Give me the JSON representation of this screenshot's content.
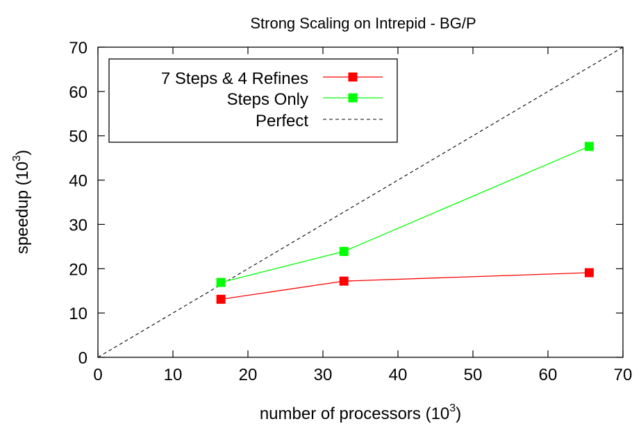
{
  "chart_data": {
    "type": "line",
    "title": "Strong Scaling on Intrepid - BG/P",
    "xlabel": "number of processors (10",
    "xlabel_sup": "3",
    "xlabel_close": ")",
    "ylabel": "speedup (10",
    "ylabel_sup": "3",
    "ylabel_close": ")",
    "xlim": [
      0,
      70
    ],
    "ylim": [
      0,
      70
    ],
    "xticks": [
      "0",
      "10",
      "20",
      "30",
      "40",
      "50",
      "60",
      "70"
    ],
    "yticks": [
      "0",
      "10",
      "20",
      "30",
      "40",
      "50",
      "60",
      "70"
    ],
    "grid": false,
    "legend_position": "top-left",
    "series": [
      {
        "name": "7 Steps & 4 Refines",
        "color": "#ff0000",
        "marker": "square",
        "points": [
          {
            "x": 16.4,
            "y": 13.1
          },
          {
            "x": 32.8,
            "y": 17.2
          },
          {
            "x": 65.5,
            "y": 19.1
          }
        ]
      },
      {
        "name": "Steps Only",
        "color": "#00ff00",
        "marker": "square",
        "points": [
          {
            "x": 16.4,
            "y": 16.9
          },
          {
            "x": 32.8,
            "y": 23.9
          },
          {
            "x": 65.5,
            "y": 47.6
          }
        ]
      },
      {
        "name": "Perfect",
        "color": "#000000",
        "dash": true,
        "points": [
          {
            "x": 0,
            "y": 0
          },
          {
            "x": 70,
            "y": 70
          }
        ]
      }
    ]
  }
}
